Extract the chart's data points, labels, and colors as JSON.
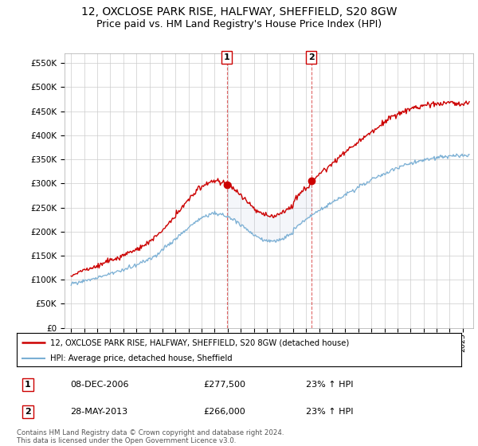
{
  "title": "12, OXCLOSE PARK RISE, HALFWAY, SHEFFIELD, S20 8GW",
  "subtitle": "Price paid vs. HM Land Registry's House Price Index (HPI)",
  "ylim": [
    0,
    570000
  ],
  "yticks": [
    0,
    50000,
    100000,
    150000,
    200000,
    250000,
    300000,
    350000,
    400000,
    450000,
    500000,
    550000
  ],
  "ytick_labels": [
    "£0",
    "£50K",
    "£100K",
    "£150K",
    "£200K",
    "£250K",
    "£300K",
    "£350K",
    "£400K",
    "£450K",
    "£500K",
    "£550K"
  ],
  "line1_color": "#cc0000",
  "line2_color": "#7aafd4",
  "vline1_x": 2006.92,
  "vline2_x": 2013.4,
  "vline1_y": 277500,
  "vline2_y": 266000,
  "legend_line1": "12, OXCLOSE PARK RISE, HALFWAY, SHEFFIELD, S20 8GW (detached house)",
  "legend_line2": "HPI: Average price, detached house, Sheffield",
  "table_row1": [
    "1",
    "08-DEC-2006",
    "£277,500",
    "23% ↑ HPI"
  ],
  "table_row2": [
    "2",
    "28-MAY-2013",
    "£266,000",
    "23% ↑ HPI"
  ],
  "footer": "Contains HM Land Registry data © Crown copyright and database right 2024.\nThis data is licensed under the Open Government Licence v3.0.",
  "background_color": "#ffffff",
  "grid_color": "#cccccc",
  "title_fontsize": 10,
  "subtitle_fontsize": 9,
  "xlim_left": 1994.5,
  "xlim_right": 2025.8
}
